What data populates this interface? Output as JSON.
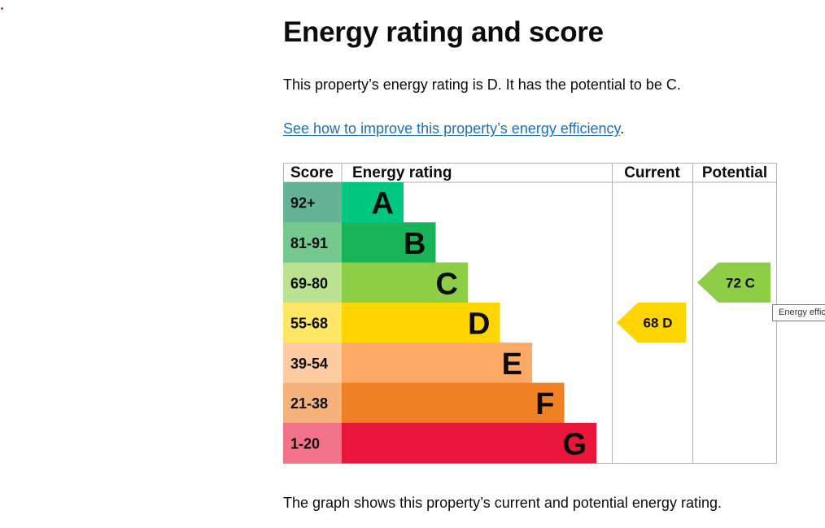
{
  "page": {
    "title": "Energy rating and score",
    "summary": "This property’s energy rating is D. It has the potential to be C.",
    "improve_link": "See how to improve this property’s energy efficiency",
    "improve_link_suffix": ".",
    "footer_text": "The graph shows this property’s current and potential energy rating.",
    "tooltip": "Energy efficiency"
  },
  "chart_data": {
    "type": "bar",
    "headers": {
      "score": "Score",
      "rating": "Energy rating",
      "current": "Current",
      "potential": "Potential"
    },
    "bands": [
      {
        "score": "92+",
        "letter": "A",
        "color": "#008054",
        "score_color": "#66b398",
        "bar_color": "#00c781"
      },
      {
        "score": "81-91",
        "letter": "B",
        "color": "#19b459",
        "score_color": "#75c98f",
        "bar_color": "#19b459"
      },
      {
        "score": "69-80",
        "letter": "C",
        "color": "#8dce46",
        "score_color": "#bbe290",
        "bar_color": "#8dce46"
      },
      {
        "score": "55-68",
        "letter": "D",
        "color": "#ffd500",
        "score_color": "#ffe766",
        "bar_color": "#ffd500"
      },
      {
        "score": "39-54",
        "letter": "E",
        "color": "#fcaa65",
        "score_color": "#fdcca3",
        "bar_color": "#fcaa65"
      },
      {
        "score": "21-38",
        "letter": "F",
        "color": "#ef8023",
        "score_color": "#f5b37b",
        "bar_color": "#ef8023"
      },
      {
        "score": "1-20",
        "letter": "G",
        "color": "#e9153b",
        "score_color": "#f27389",
        "bar_color": "#e9153b"
      }
    ],
    "current": {
      "score": 68,
      "rating": "D",
      "label": "68  D"
    },
    "potential": {
      "score": 72,
      "rating": "C",
      "label": "72  C"
    }
  }
}
